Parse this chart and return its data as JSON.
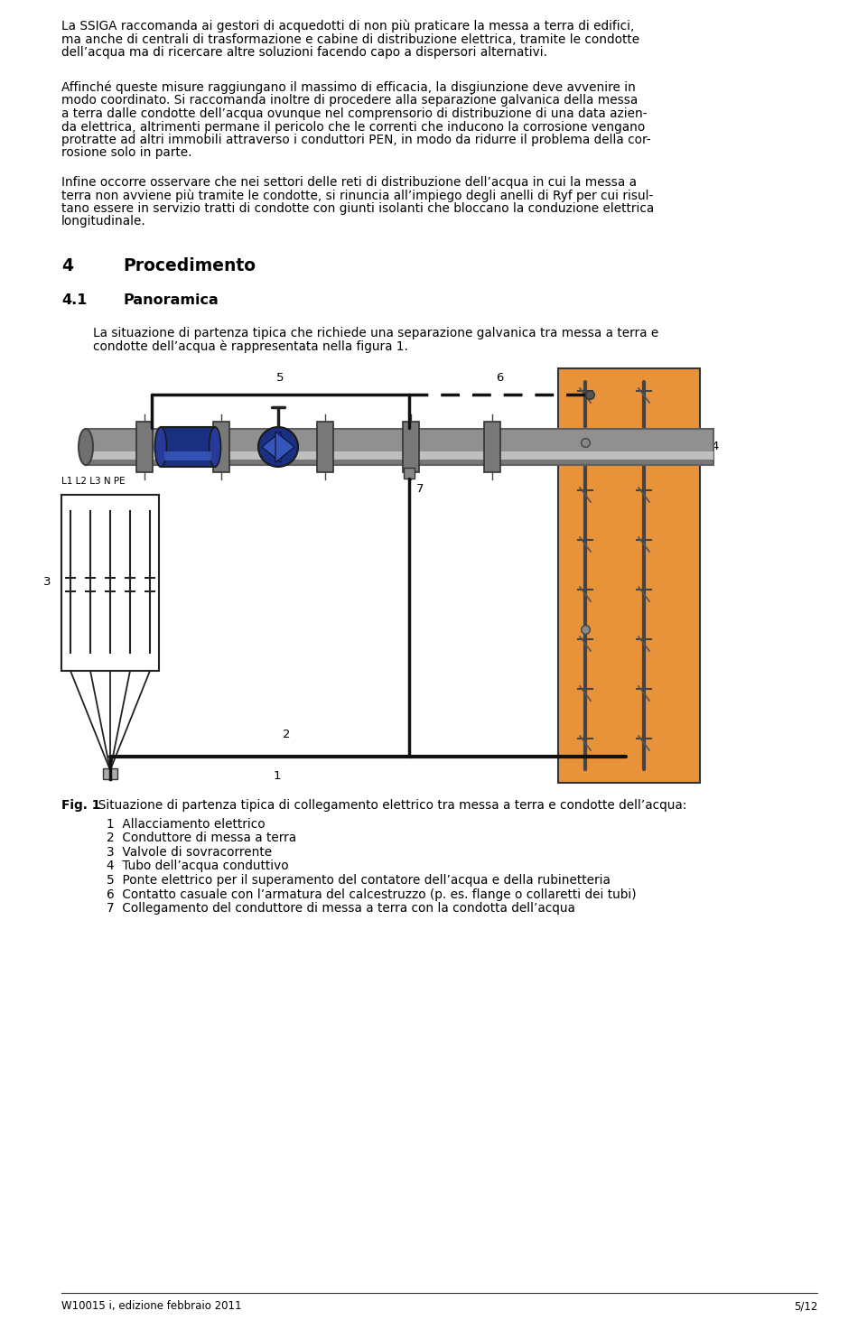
{
  "bg_color": "#ffffff",
  "text_color": "#000000",
  "para1": "La SSIGA raccomanda ai gestori di acquedotti di non più praticare la messa a terra di edifici,\nma anche di centrali di trasformazione e cabine di distribuzione elettrica, tramite le condotte\ndell’acqua ma di ricercare altre soluzioni facendo capo a dispersori alternativi.",
  "para2_line1": "Affinché queste misure raggiungano il massimo di efficacia, la disgiunzione deve avvenire in",
  "para2_line2": "modo coordinato. Si raccomanda inoltre di procedere alla separazione galvanica della messa",
  "para2_line3": "a terra dalle condotte dell’acqua ovunque nel comprensorio di distribuzione di una data azien-",
  "para2_line4": "da elettrica, altrimenti permane il pericolo che le correnti che inducono la corrosione vengano",
  "para2_line5": "protratte ad altri immobili attraverso i conduttori PEN, in modo da ridurre il problema della cor-",
  "para2_line6": "rosione solo in parte.",
  "para3_line1": "Infine occorre osservare che nei settori delle reti di distribuzione dell’acqua in cui la messa a",
  "para3_line2": "terra non avviene più tramite le condotte, si rinuncia all’impiego degli anelli di Ryf per cui risul-",
  "para3_line3": "tano essere in servizio tratti di condotte con giunti isolanti che bloccano la conduzione elettrica",
  "para3_line4": "longitudinale.",
  "section4": "4",
  "section4_title": "Procedimento",
  "section41": "4.1",
  "section41_title": "Panoramica",
  "para4_line1": "La situazione di partenza tipica che richiede una separazione galvanica tra messa a terra e",
  "para4_line2": "condotte dell’acqua è rappresentata nella figura 1.",
  "fig_caption_bold": "Fig. 1",
  "fig_caption": "  Situazione di partenza tipica di collegamento elettrico tra messa a terra e condotte dell’acqua:",
  "legend_items": [
    "1  Allacciamento elettrico",
    "2  Conduttore di messa a terra",
    "3  Valvole di sovracorrente",
    "4  Tubo dell’acqua conduttivo",
    "5  Ponte elettrico per il superamento del contatore dell’acqua e della rubinetteria",
    "6  Contatto casuale con l’armatura del calcestruzzo (p. es. flange o collaretti dei tubi)",
    "7  Collegamento del conduttore di messa a terra con la condotta dell’acqua"
  ],
  "footer_left": "W10015 i, edizione febbraio 2011",
  "footer_right": "5/12",
  "wall_color": "#e8923a",
  "blue_dark": "#1a3080",
  "blue_mid": "#2a4aaa",
  "pipe_grey": "#909090",
  "pipe_light": "#c8c8c8",
  "pipe_dark": "#606060",
  "flange_grey": "#787878"
}
